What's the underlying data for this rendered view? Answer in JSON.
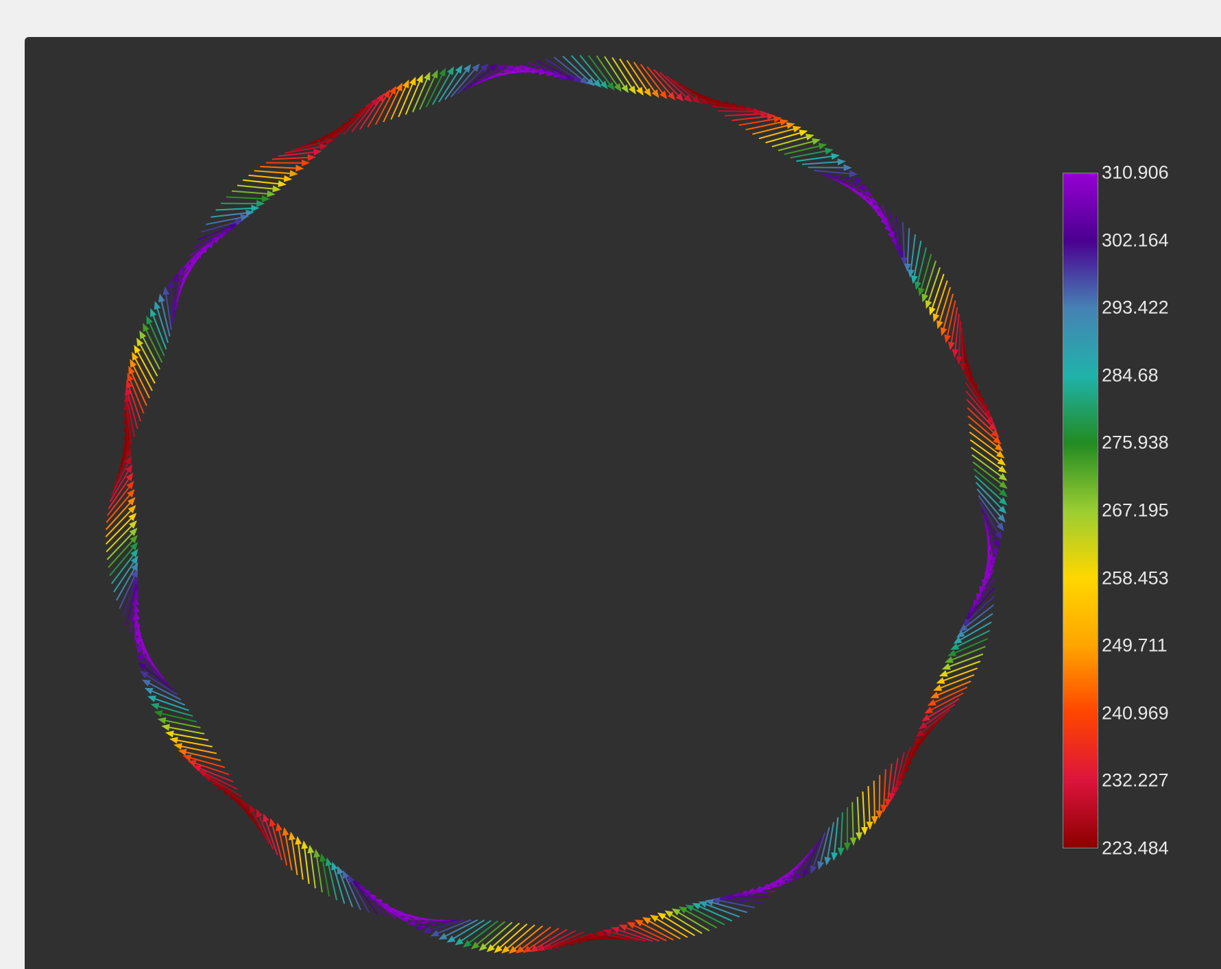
{
  "colorbar": {
    "ticks": [
      "310.906",
      "302.164",
      "293.422",
      "284.68",
      "275.938",
      "267.195",
      "258.453",
      "249.711",
      "240.969",
      "232.227",
      "223.484"
    ],
    "gradient_stops": [
      "#9600d2",
      "#4a0090",
      "#4682b4",
      "#20b2aa",
      "#228b22",
      "#9acd32",
      "#ffd700",
      "#ffa500",
      "#ff4500",
      "#dc143c",
      "#8b0000"
    ],
    "min": 223.484,
    "max": 310.906
  },
  "vector_field": {
    "type": "quiver-ring",
    "arrow_count": 360,
    "color_cycles": 7
  }
}
